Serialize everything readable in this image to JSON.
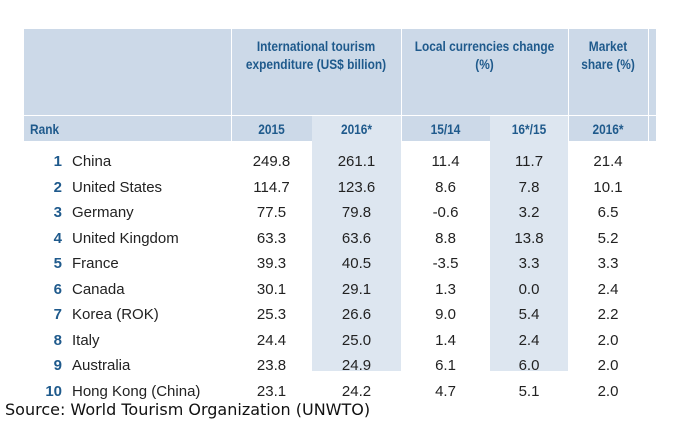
{
  "table": {
    "group_headers": {
      "expenditure": "International tourism expenditure (US$ billion)",
      "currencies": "Local currencies change (%)",
      "market": "Market share (%)"
    },
    "sub_headers": {
      "rank": "Rank",
      "exp_2015": "2015",
      "exp_2016": "2016*",
      "cur_1514": "15/14",
      "cur_1615": "16*/15",
      "mkt_2016": "2016*"
    },
    "rows": [
      {
        "rank": "1",
        "country": "China",
        "exp_2015": "249.8",
        "exp_2016": "261.1",
        "cur_1514": "11.4",
        "cur_1615": "11.7",
        "mkt_2016": "21.4"
      },
      {
        "rank": "2",
        "country": "United States",
        "exp_2015": "114.7",
        "exp_2016": "123.6",
        "cur_1514": "8.6",
        "cur_1615": "7.8",
        "mkt_2016": "10.1"
      },
      {
        "rank": "3",
        "country": "Germany",
        "exp_2015": "77.5",
        "exp_2016": "79.8",
        "cur_1514": "-0.6",
        "cur_1615": "3.2",
        "mkt_2016": "6.5"
      },
      {
        "rank": "4",
        "country": "United Kingdom",
        "exp_2015": "63.3",
        "exp_2016": "63.6",
        "cur_1514": "8.8",
        "cur_1615": "13.8",
        "mkt_2016": "5.2"
      },
      {
        "rank": "5",
        "country": "France",
        "exp_2015": "39.3",
        "exp_2016": "40.5",
        "cur_1514": "-3.5",
        "cur_1615": "3.3",
        "mkt_2016": "3.3"
      },
      {
        "rank": "6",
        "country": "Canada",
        "exp_2015": "30.1",
        "exp_2016": "29.1",
        "cur_1514": "1.3",
        "cur_1615": "0.0",
        "mkt_2016": "2.4"
      },
      {
        "rank": "7",
        "country": "Korea (ROK)",
        "exp_2015": "25.3",
        "exp_2016": "26.6",
        "cur_1514": "9.0",
        "cur_1615": "5.4",
        "mkt_2016": "2.2"
      },
      {
        "rank": "8",
        "country": "Italy",
        "exp_2015": "24.4",
        "exp_2016": "25.0",
        "cur_1514": "1.4",
        "cur_1615": "2.4",
        "mkt_2016": "2.0"
      },
      {
        "rank": "9",
        "country": "Australia",
        "exp_2015": "23.8",
        "exp_2016": "24.9",
        "cur_1514": "6.1",
        "cur_1615": "6.0",
        "mkt_2016": "2.0"
      },
      {
        "rank": "10",
        "country": "Hong Kong (China)",
        "exp_2015": "23.1",
        "exp_2016": "24.2",
        "cur_1514": "4.7",
        "cur_1615": "5.1",
        "mkt_2016": "2.0"
      }
    ]
  },
  "source": "Source: World Tourism Organization (UNWTO)",
  "colors": {
    "header_bg": "#ccd9e8",
    "shaded_column": "#dde6f0",
    "header_text": "#1f5a8c"
  }
}
